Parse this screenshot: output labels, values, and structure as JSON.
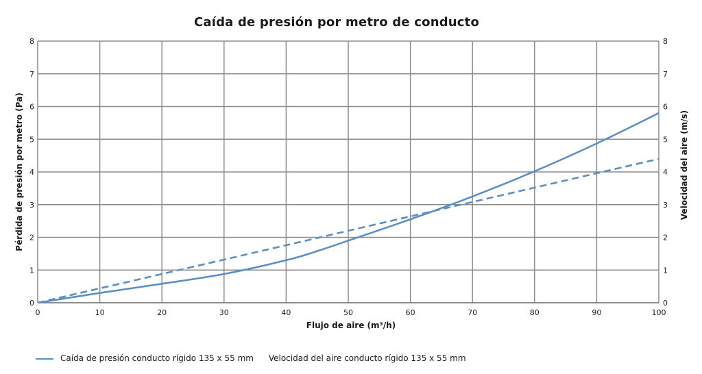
{
  "chart_data": {
    "type": "line",
    "title": "Caída de presión por metro de conducto",
    "xlabel": "Flujo de aire (m³/h)",
    "ylabel": "Pérdida de presión por metro (Pa)",
    "y2label": "Velocidad del aire (m/s)",
    "xlim": [
      0,
      100
    ],
    "ylim": [
      0,
      8
    ],
    "y2lim": [
      0,
      8
    ],
    "xticks": [
      0,
      10,
      20,
      30,
      40,
      50,
      60,
      70,
      80,
      90,
      100
    ],
    "yticks": [
      0,
      1,
      2,
      3,
      4,
      5,
      6,
      7,
      8
    ],
    "y2ticks": [
      0,
      1,
      2,
      3,
      4,
      5,
      6,
      7,
      8
    ],
    "grid": true,
    "legend_position": "bottom-left",
    "series": [
      {
        "name": "Caída de presión conducto rígido 135 x 55 mm",
        "style": "solid",
        "axis": "left",
        "color": "#5b8ec2",
        "x": [
          0,
          10,
          20,
          30,
          40,
          45,
          50,
          60,
          70,
          80,
          90,
          100
        ],
        "y": [
          0,
          0.3,
          0.58,
          0.88,
          1.3,
          1.58,
          1.9,
          2.55,
          3.25,
          4.02,
          4.87,
          5.8
        ]
      },
      {
        "name": "Velocidad del aire conducto rígido 135 x 55 mm",
        "style": "dashed",
        "axis": "right",
        "color": "#5b8ec2",
        "x": [
          0,
          10,
          20,
          30,
          40,
          50,
          60,
          70,
          80,
          90,
          100
        ],
        "y": [
          0,
          0.44,
          0.88,
          1.32,
          1.76,
          2.2,
          2.64,
          3.08,
          3.52,
          3.96,
          4.4
        ]
      }
    ]
  }
}
